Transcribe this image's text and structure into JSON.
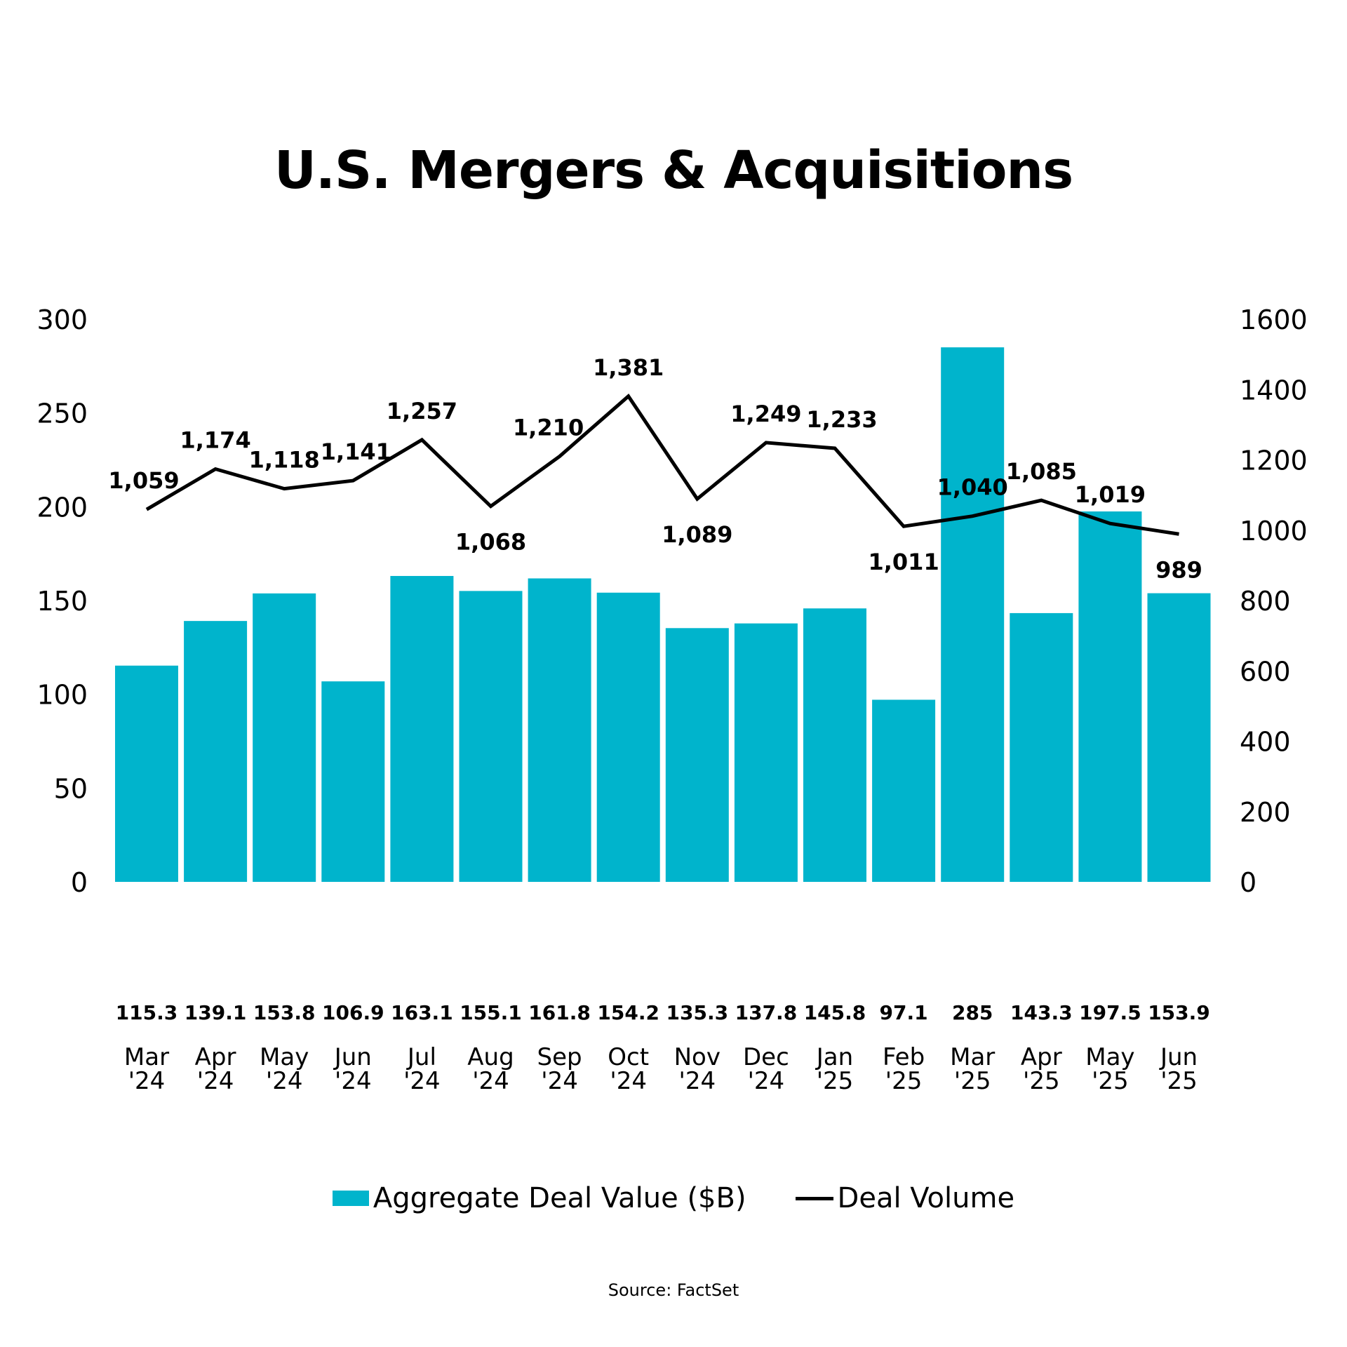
{
  "chart_data": {
    "type": "bar+line",
    "title": "U.S. Mergers & Acquisitions",
    "categories": [
      [
        "Mar",
        "'24"
      ],
      [
        "Apr",
        "'24"
      ],
      [
        "May",
        "'24"
      ],
      [
        "Jun",
        "'24"
      ],
      [
        "Jul",
        "'24"
      ],
      [
        "Aug",
        "'24"
      ],
      [
        "Sep",
        "'24"
      ],
      [
        "Oct",
        "'24"
      ],
      [
        "Nov",
        "'24"
      ],
      [
        "Dec",
        "'24"
      ],
      [
        "Jan",
        "'25"
      ],
      [
        "Feb",
        "'25"
      ],
      [
        "Mar",
        "'25"
      ],
      [
        "Apr",
        "'25"
      ],
      [
        "May",
        "'25"
      ],
      [
        "Jun",
        "'25"
      ]
    ],
    "series": [
      {
        "name": "Aggregate Deal Value ($B)",
        "type": "bar",
        "axis": "left",
        "color": "#00b4cc",
        "values": [
          115.3,
          139.1,
          153.8,
          106.9,
          163.1,
          155.1,
          161.8,
          154.2,
          135.3,
          137.8,
          145.8,
          97.1,
          285,
          143.3,
          197.5,
          153.9
        ],
        "labels": [
          "115.3",
          "139.1",
          "153.8",
          "106.9",
          "163.1",
          "155.1",
          "161.8",
          "154.2",
          "135.3",
          "137.8",
          "145.8",
          "97.1",
          "285",
          "143.3",
          "197.5",
          "153.9"
        ]
      },
      {
        "name": "Deal Volume",
        "type": "line",
        "axis": "right",
        "color": "#000000",
        "values": [
          1059,
          1174,
          1118,
          1141,
          1257,
          1068,
          1210,
          1381,
          1089,
          1249,
          1233,
          1011,
          1040,
          1085,
          1019,
          989
        ],
        "labels": [
          "1,059",
          "1,174",
          "1,118",
          "1,141",
          "1,257",
          "1,068",
          "1,210",
          "1,381",
          "1,089",
          "1,249",
          "1,233",
          "1,011",
          "1,040",
          "1,085",
          "1,019",
          "989"
        ]
      }
    ],
    "y_left": {
      "range": [
        0,
        300
      ],
      "ticks": [
        "0",
        "50",
        "100",
        "150",
        "200",
        "250",
        "300"
      ]
    },
    "y_right": {
      "range": [
        0,
        1600
      ],
      "ticks": [
        "0",
        "200",
        "400",
        "600",
        "800",
        "1000",
        "1200",
        "1400",
        "1600"
      ]
    },
    "grid": false,
    "legend_position": "bottom"
  },
  "legend": {
    "bar": "Aggregate Deal Value ($B)",
    "line": "Deal Volume"
  },
  "source": "Source: FactSet"
}
